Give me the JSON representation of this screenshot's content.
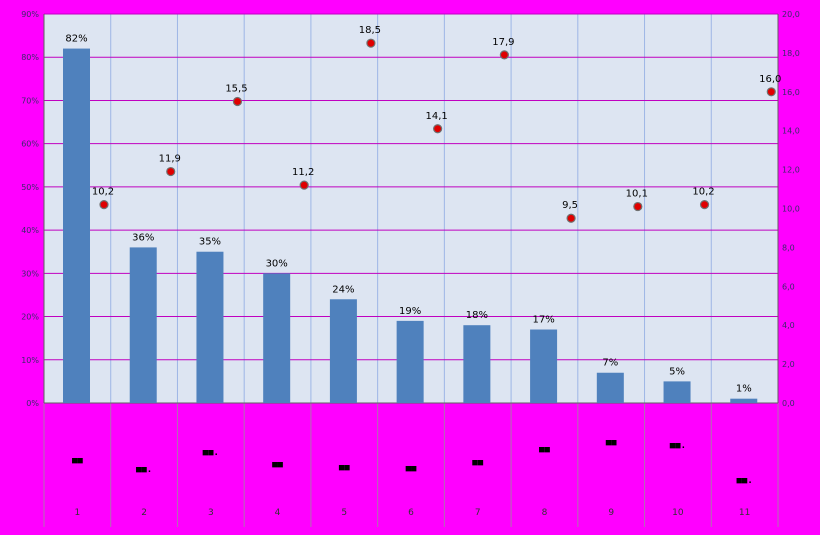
{
  "chart_data": {
    "type": "bar",
    "categories": [
      "1",
      "2",
      "3",
      "4",
      "5",
      "6",
      "7",
      "8",
      "9",
      "10",
      "11"
    ],
    "category_glyphs": [
      "■■",
      "■■.",
      "■■.",
      "■■",
      "■■",
      "■■",
      "■■",
      "■■",
      "■■",
      "■■.",
      "■■."
    ],
    "series": [
      {
        "values": [
          82,
          36,
          35,
          30,
          24,
          19,
          18,
          17,
          7,
          5,
          1
        ],
        "axis": "left"
      },
      {
        "values": [
          10.2,
          11.9,
          15.5,
          11.2,
          18.5,
          14.1,
          17.9,
          9.5,
          10.1,
          10.2,
          16.0
        ],
        "axis": "right"
      }
    ],
    "bar_labels": [
      "82%",
      "36%",
      "35%",
      "30%",
      "24%",
      "19%",
      "18%",
      "17%",
      "7%",
      "5%",
      "1%"
    ],
    "point_labels": [
      "10,2",
      "11,9",
      "15,5",
      "11,2",
      "18,5",
      "14,1",
      "17,9",
      "9,5",
      "10,1",
      "10,2",
      "16,0"
    ],
    "y_left": {
      "ylim": [
        0,
        90
      ],
      "ticks": [
        "0%",
        "10%",
        "20%",
        "30%",
        "40%",
        "50%",
        "60%",
        "70%",
        "80%",
        "90%"
      ]
    },
    "y_right": {
      "ylim": [
        0,
        20
      ],
      "ticks": [
        "0,0",
        "2,0",
        "4,0",
        "6,0",
        "8,0",
        "10,0",
        "12,0",
        "14,0",
        "16,0",
        "18,0",
        "20,0"
      ]
    },
    "grid": true,
    "legend": "none"
  },
  "colors": {
    "page_bg": "#ff00ff",
    "plot_bg": "#dde5f2",
    "bar": "#4f81bd",
    "grid": "#c000c0",
    "vgrid": "#9db6e6",
    "point_fill": "#e00000",
    "point_stroke": "#707070"
  }
}
